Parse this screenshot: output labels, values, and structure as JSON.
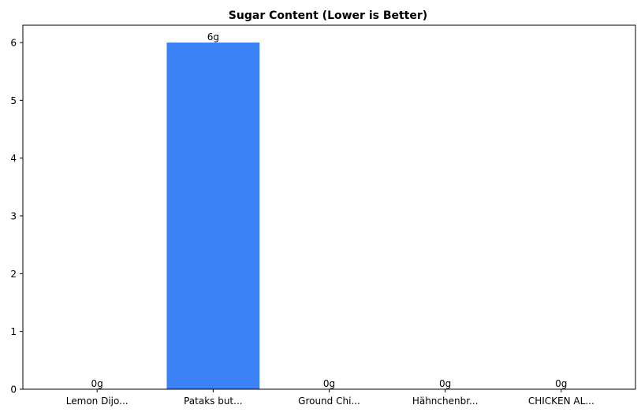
{
  "chart_data": {
    "type": "bar",
    "title": "Sugar Content (Lower is Better)",
    "xlabel": "",
    "ylabel": "",
    "categories": [
      "Lemon Dijo...",
      "Pataks but...",
      "Ground Chi...",
      "Hähnchenbr...",
      "CHICKEN AL..."
    ],
    "values": [
      0,
      6,
      0,
      0,
      0
    ],
    "data_labels": [
      "0g",
      "6g",
      "0g",
      "0g",
      "0g"
    ],
    "yticks": [
      0,
      1,
      2,
      3,
      4,
      5,
      6
    ],
    "ylim": [
      0,
      6.3
    ],
    "grid": false,
    "bar_color": "#3b82f6"
  }
}
